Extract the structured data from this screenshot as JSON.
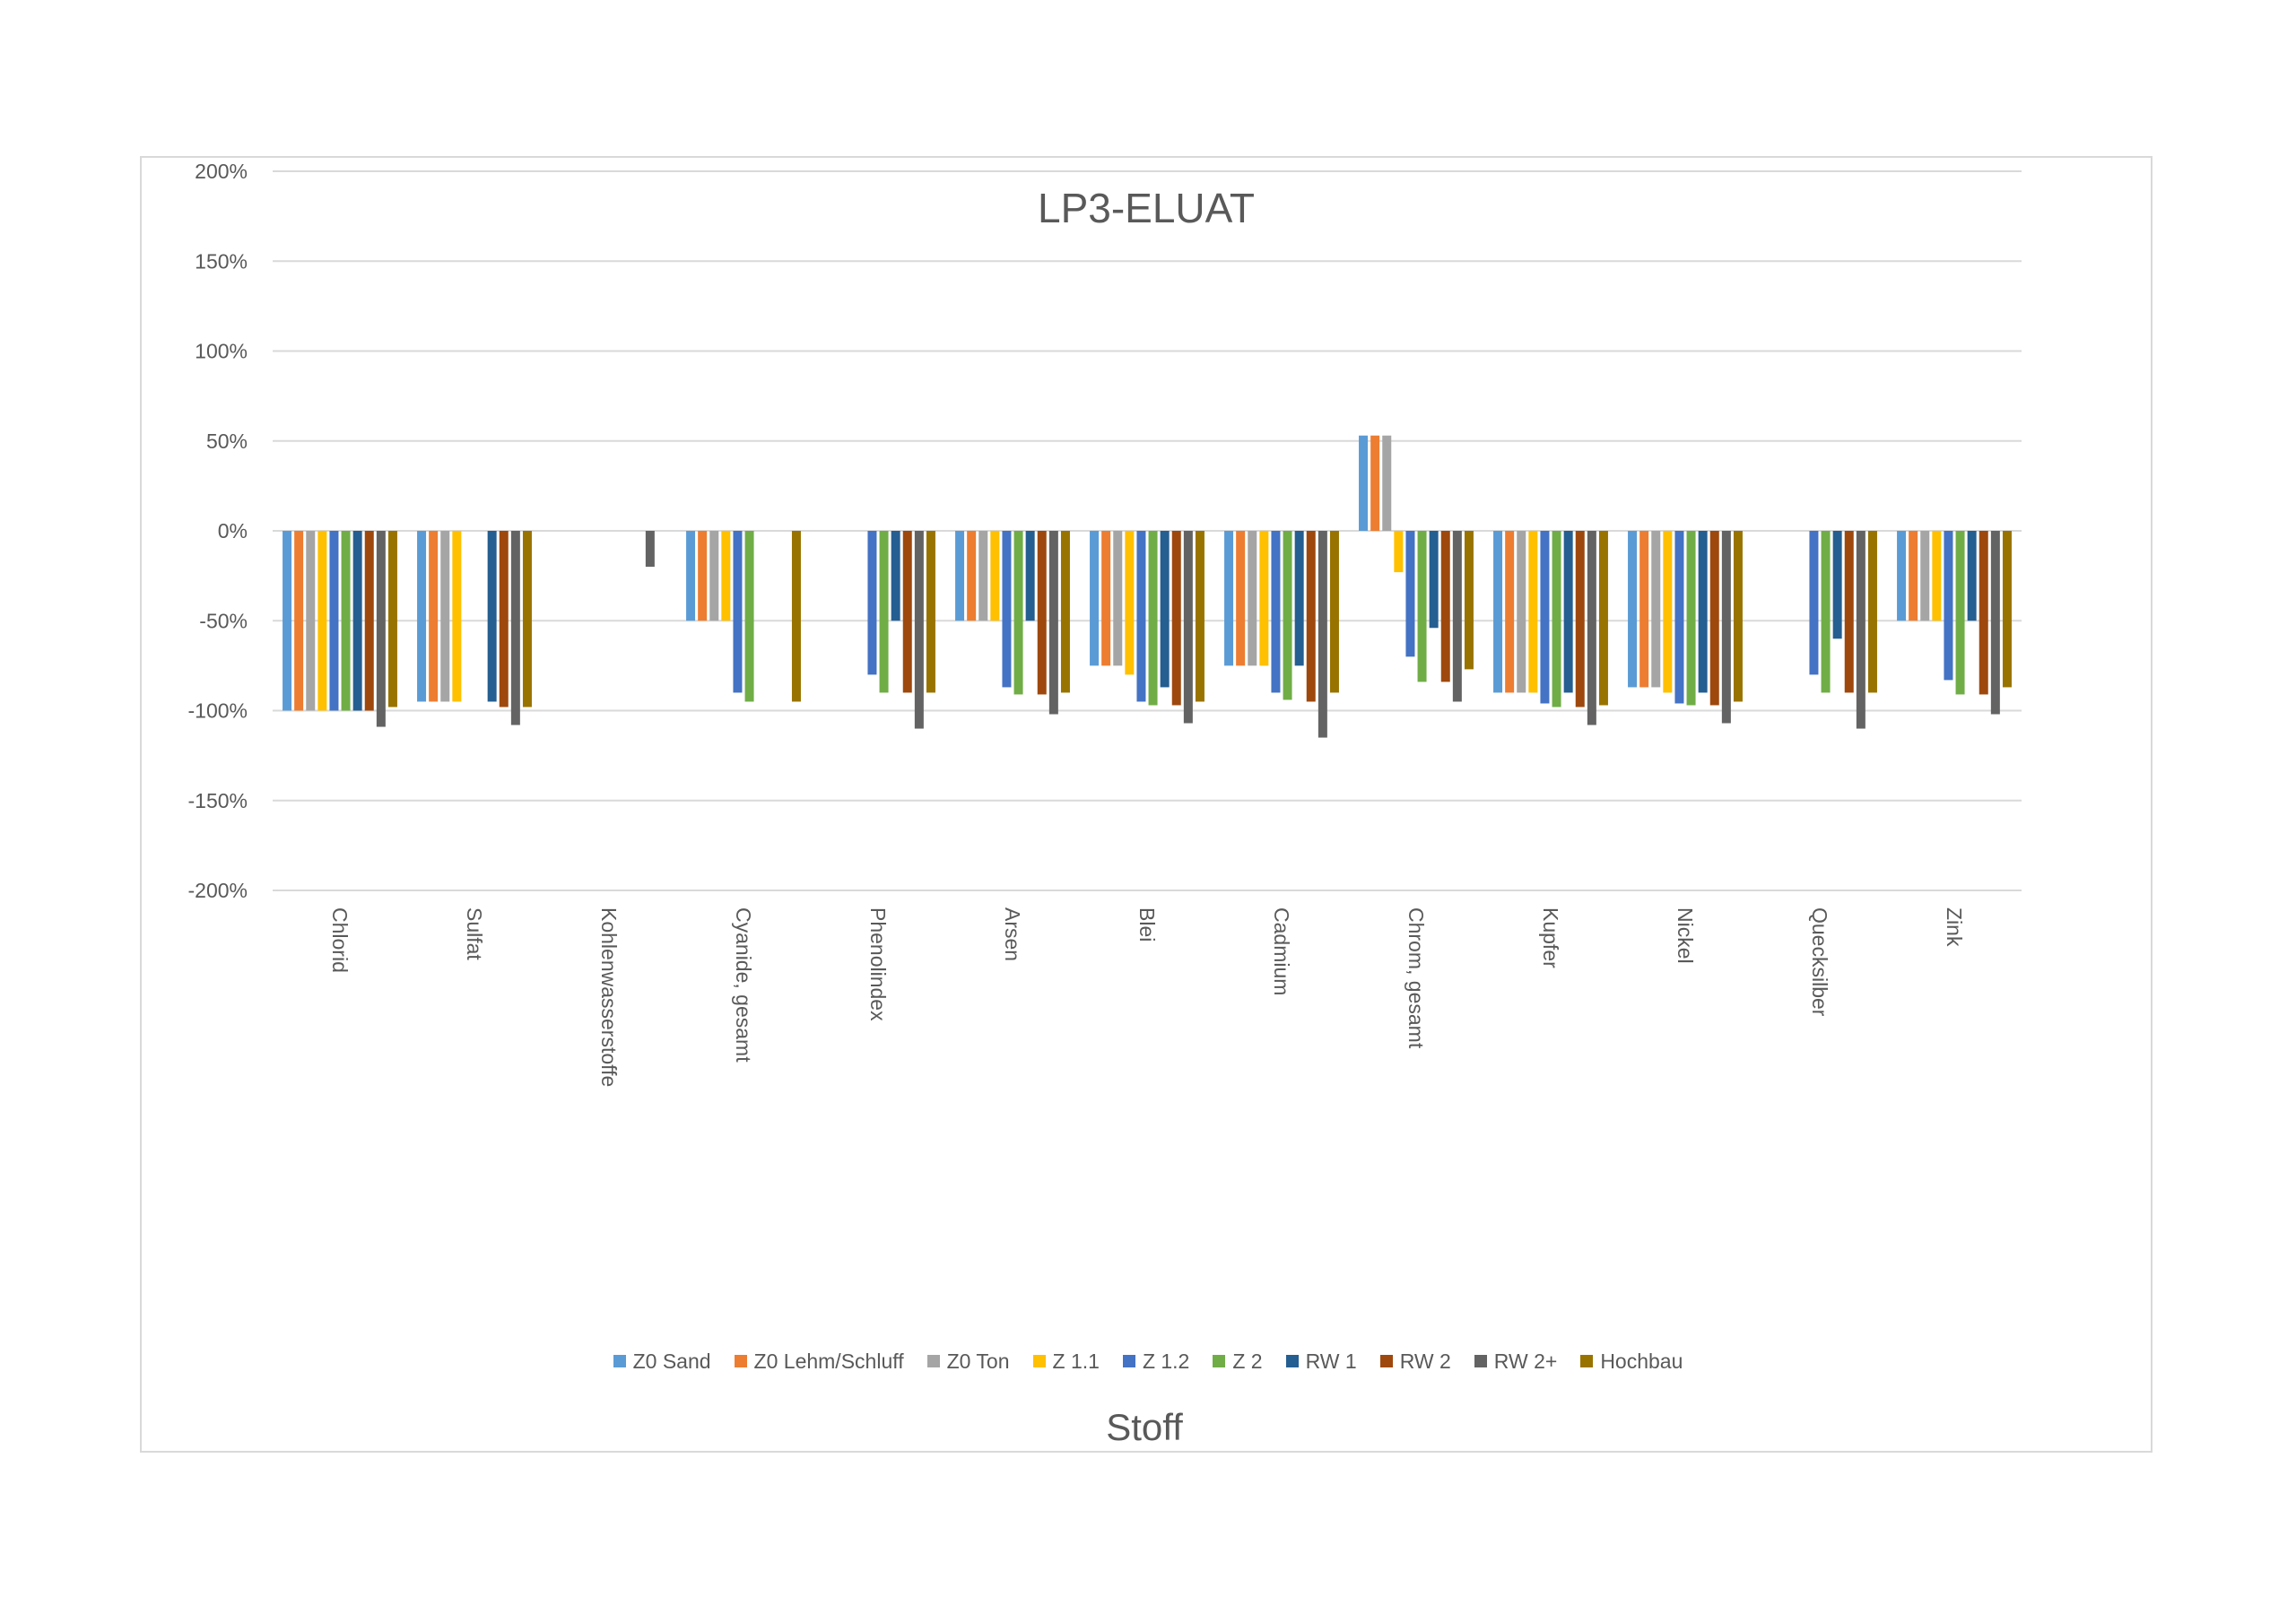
{
  "chart_data": {
    "type": "bar",
    "title": "LP3-ELUAT",
    "xlabel": "Stoff",
    "ylabel": "",
    "ylim": [
      -2,
      2
    ],
    "ytick_step": 0.5,
    "yticks": [
      "200%",
      "150%",
      "100%",
      "50%",
      "0%",
      "-50%",
      "-100%",
      "-150%",
      "-200%"
    ],
    "grid": true,
    "legend_position": "bottom",
    "categories": [
      "Chlorid",
      "Sulfat",
      "Kohlenwasserstoffe",
      "Cyanide, gesamt",
      "Phenolindex",
      "Arsen",
      "Blei",
      "Cadmium",
      "Chrom, gesamt",
      "Kupfer",
      "Nickel",
      "Quecksilber",
      "Zink"
    ],
    "series": [
      {
        "name": "Z0 Sand",
        "color": "#5B9BD5",
        "values": [
          -1.0,
          -0.95,
          null,
          -0.5,
          null,
          -0.5,
          -0.75,
          -0.75,
          0.53,
          -0.9,
          -0.87,
          null,
          -0.5
        ]
      },
      {
        "name": "Z0 Lehm/Schluff",
        "color": "#ED7D31",
        "values": [
          -1.0,
          -0.95,
          null,
          -0.5,
          null,
          -0.5,
          -0.75,
          -0.75,
          0.53,
          -0.9,
          -0.87,
          null,
          -0.5
        ]
      },
      {
        "name": "Z0 Ton",
        "color": "#A5A5A5",
        "values": [
          -1.0,
          -0.95,
          null,
          -0.5,
          null,
          -0.5,
          -0.75,
          -0.75,
          0.53,
          -0.9,
          -0.87,
          null,
          -0.5
        ]
      },
      {
        "name": "Z 1.1",
        "color": "#FFC000",
        "values": [
          -1.0,
          -0.95,
          null,
          -0.5,
          null,
          -0.5,
          -0.8,
          -0.75,
          -0.23,
          -0.9,
          -0.9,
          null,
          -0.5
        ]
      },
      {
        "name": "Z 1.2",
        "color": "#4472C4",
        "values": [
          -1.0,
          null,
          null,
          -0.9,
          -0.8,
          -0.87,
          -0.95,
          -0.9,
          -0.7,
          -0.96,
          -0.96,
          -0.8,
          -0.83
        ]
      },
      {
        "name": "Z 2",
        "color": "#70AD47",
        "values": [
          -1.0,
          null,
          null,
          -0.95,
          -0.9,
          -0.91,
          -0.97,
          -0.94,
          -0.84,
          -0.98,
          -0.97,
          -0.9,
          -0.91
        ]
      },
      {
        "name": "RW 1",
        "color": "#255E91",
        "values": [
          -1.0,
          -0.95,
          null,
          null,
          -0.5,
          -0.5,
          -0.87,
          -0.75,
          -0.54,
          -0.9,
          -0.9,
          -0.6,
          -0.5
        ]
      },
      {
        "name": "RW 2",
        "color": "#9E480E",
        "values": [
          -1.0,
          -0.98,
          null,
          null,
          -0.9,
          -0.91,
          -0.97,
          -0.95,
          -0.84,
          -0.98,
          -0.97,
          -0.9,
          -0.91
        ]
      },
      {
        "name": "RW 2+",
        "color": "#636363",
        "values": [
          -1.09,
          -1.08,
          -0.2,
          null,
          -1.1,
          -1.02,
          -1.07,
          -1.15,
          -0.95,
          -1.08,
          -1.07,
          -1.1,
          -1.02
        ]
      },
      {
        "name": "Hochbau",
        "color": "#997300",
        "values": [
          -0.98,
          -0.98,
          null,
          -0.95,
          -0.9,
          -0.9,
          -0.95,
          -0.9,
          -0.77,
          -0.97,
          -0.95,
          -0.9,
          -0.87
        ]
      }
    ]
  }
}
